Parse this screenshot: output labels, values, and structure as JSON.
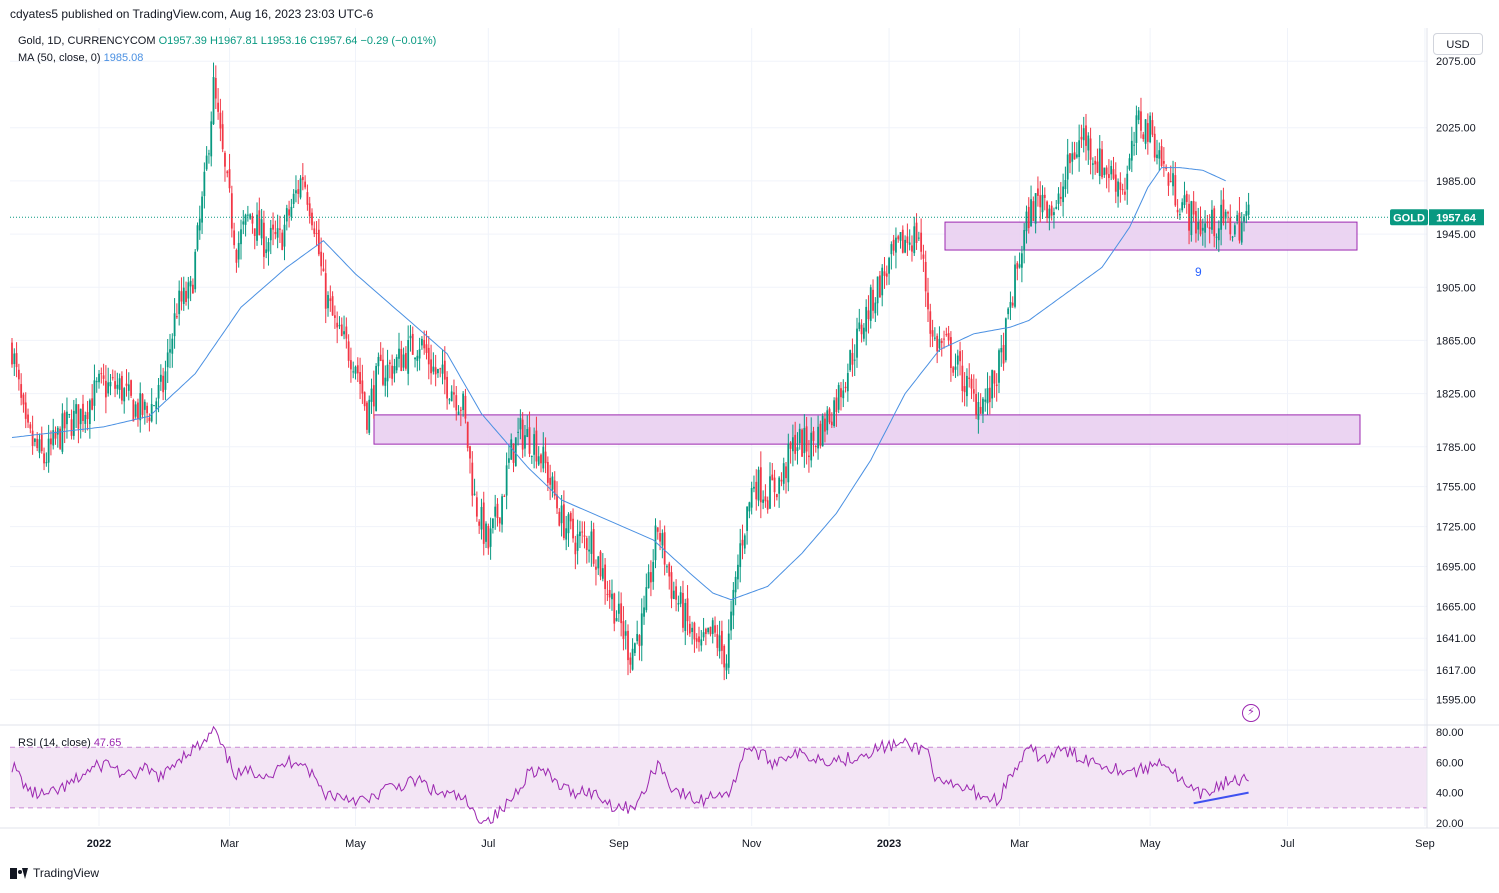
{
  "header": {
    "published": "cdyates5 published on TradingView.com, Aug 16, 2023 23:03 UTC-6",
    "currency_button": "USD",
    "brand": "TradingView"
  },
  "legend": {
    "symbol": "Gold, 1D, CURRENCYCOM",
    "open": "O1957.39",
    "high": "H1967.81",
    "low": "L1953.16",
    "close": "C1957.64",
    "change": "−0.29 (−0.01%)",
    "ma_label": "MA (50, close, 0)",
    "ma_value": "1985.08",
    "rsi_label": "RSI (14, close)",
    "rsi_value": "47.65"
  },
  "colors": {
    "up": "#089981",
    "down": "#f23645",
    "ma": "#4a90e2",
    "zone_fill": "#e7cdf0",
    "zone_stroke": "#9c27b0",
    "rsi_line": "#9c27b0",
    "rsi_band": "#f3e5f5",
    "divergence": "#3f51f0",
    "price_tag": "#089981"
  },
  "chart_data": [
    {
      "type": "candlestick",
      "y_ticks": [
        2075,
        2025,
        1985,
        1945,
        1905,
        1865,
        1825,
        1785,
        1755,
        1725,
        1695,
        1665,
        1641,
        1617,
        1595
      ],
      "ylim": [
        1578,
        2100
      ],
      "x_labels": [
        "2022",
        "Mar",
        "May",
        "Jul",
        "Sep",
        "Nov",
        "2023",
        "Mar",
        "May",
        "Jul",
        "Sep"
      ],
      "last_price_label": "GOLD",
      "last_price": 1957.64,
      "annotation": "9",
      "zones": [
        {
          "low": 1933,
          "high": 1954
        },
        {
          "low": 1787,
          "high": 1809
        }
      ],
      "price_anchors": [
        [
          0,
          1860
        ],
        [
          6,
          1795
        ],
        [
          14,
          1775
        ],
        [
          23,
          1800
        ],
        [
          30,
          1810
        ],
        [
          38,
          1830
        ],
        [
          47,
          1830
        ],
        [
          53,
          1815
        ],
        [
          59,
          1810
        ],
        [
          66,
          1830
        ],
        [
          72,
          1890
        ],
        [
          78,
          1900
        ],
        [
          84,
          1980
        ],
        [
          88,
          2055
        ],
        [
          93,
          1990
        ],
        [
          98,
          1935
        ],
        [
          104,
          1960
        ],
        [
          110,
          1940
        ],
        [
          117,
          1940
        ],
        [
          123,
          1970
        ],
        [
          127,
          1990
        ],
        [
          132,
          1955
        ],
        [
          136,
          1905
        ],
        [
          142,
          1870
        ],
        [
          150,
          1850
        ],
        [
          155,
          1810
        ],
        [
          160,
          1840
        ],
        [
          166,
          1845
        ],
        [
          172,
          1855
        ],
        [
          178,
          1865
        ],
        [
          185,
          1840
        ],
        [
          192,
          1830
        ],
        [
          197,
          1815
        ],
        [
          202,
          1745
        ],
        [
          208,
          1710
        ],
        [
          213,
          1740
        ],
        [
          218,
          1780
        ],
        [
          222,
          1795
        ],
        [
          228,
          1790
        ],
        [
          233,
          1770
        ],
        [
          240,
          1730
        ],
        [
          246,
          1715
        ],
        [
          253,
          1715
        ],
        [
          258,
          1690
        ],
        [
          264,
          1660
        ],
        [
          270,
          1630
        ],
        [
          276,
          1655
        ],
        [
          282,
          1725
        ],
        [
          288,
          1680
        ],
        [
          294,
          1655
        ],
        [
          300,
          1630
        ],
        [
          306,
          1645
        ],
        [
          312,
          1625
        ],
        [
          318,
          1710
        ],
        [
          324,
          1760
        ],
        [
          330,
          1750
        ],
        [
          336,
          1760
        ],
        [
          342,
          1790
        ],
        [
          348,
          1785
        ],
        [
          354,
          1800
        ],
        [
          360,
          1820
        ],
        [
          366,
          1850
        ],
        [
          372,
          1880
        ],
        [
          378,
          1905
        ],
        [
          384,
          1925
        ],
        [
          390,
          1940
        ],
        [
          396,
          1945
        ],
        [
          402,
          1865
        ],
        [
          408,
          1860
        ],
        [
          414,
          1840
        ],
        [
          420,
          1820
        ],
        [
          426,
          1820
        ],
        [
          432,
          1850
        ],
        [
          438,
          1910
        ],
        [
          444,
          1960
        ],
        [
          450,
          1975
        ],
        [
          456,
          1960
        ],
        [
          462,
          2000
        ],
        [
          468,
          2020
        ],
        [
          474,
          2000
        ],
        [
          480,
          1990
        ],
        [
          486,
          1980
        ],
        [
          492,
          2030
        ],
        [
          498,
          2020
        ],
        [
          504,
          1990
        ],
        [
          510,
          1970
        ],
        [
          516,
          1955
        ],
        [
          522,
          1950
        ],
        [
          528,
          1955
        ],
        [
          534,
          1950
        ],
        [
          540,
          1957.64
        ]
      ],
      "ma_anchors": [
        [
          0,
          1792
        ],
        [
          40,
          1800
        ],
        [
          60,
          1808
        ],
        [
          80,
          1840
        ],
        [
          100,
          1890
        ],
        [
          120,
          1920
        ],
        [
          136,
          1940
        ],
        [
          150,
          1915
        ],
        [
          170,
          1885
        ],
        [
          190,
          1855
        ],
        [
          205,
          1810
        ],
        [
          225,
          1770
        ],
        [
          240,
          1745
        ],
        [
          260,
          1730
        ],
        [
          280,
          1715
        ],
        [
          296,
          1690
        ],
        [
          306,
          1675
        ],
        [
          314,
          1670
        ],
        [
          330,
          1680
        ],
        [
          345,
          1705
        ],
        [
          360,
          1735
        ],
        [
          375,
          1775
        ],
        [
          390,
          1825
        ],
        [
          405,
          1858
        ],
        [
          420,
          1870
        ],
        [
          436,
          1875
        ],
        [
          444,
          1880
        ],
        [
          460,
          1900
        ],
        [
          476,
          1920
        ],
        [
          488,
          1950
        ],
        [
          496,
          1980
        ],
        [
          502,
          1995
        ],
        [
          510,
          1995
        ],
        [
          520,
          1993
        ],
        [
          530,
          1985.08
        ]
      ]
    },
    {
      "type": "line",
      "name": "RSI (14, close)",
      "y_ticks": [
        80,
        60,
        40,
        20
      ],
      "ylim": [
        18,
        82
      ],
      "band": [
        30,
        70
      ],
      "rsi_anchors": [
        [
          0,
          58
        ],
        [
          8,
          40
        ],
        [
          16,
          38
        ],
        [
          25,
          45
        ],
        [
          34,
          55
        ],
        [
          42,
          60
        ],
        [
          50,
          50
        ],
        [
          58,
          55
        ],
        [
          66,
          50
        ],
        [
          72,
          62
        ],
        [
          78,
          68
        ],
        [
          84,
          72
        ],
        [
          88,
          82
        ],
        [
          93,
          65
        ],
        [
          98,
          52
        ],
        [
          106,
          54
        ],
        [
          114,
          52
        ],
        [
          120,
          60
        ],
        [
          126,
          62
        ],
        [
          132,
          50
        ],
        [
          136,
          40
        ],
        [
          142,
          38
        ],
        [
          150,
          36
        ],
        [
          156,
          34
        ],
        [
          162,
          42
        ],
        [
          170,
          45
        ],
        [
          178,
          48
        ],
        [
          185,
          40
        ],
        [
          192,
          38
        ],
        [
          197,
          36
        ],
        [
          202,
          25
        ],
        [
          208,
          22
        ],
        [
          214,
          28
        ],
        [
          220,
          40
        ],
        [
          226,
          55
        ],
        [
          232,
          54
        ],
        [
          238,
          46
        ],
        [
          244,
          40
        ],
        [
          250,
          42
        ],
        [
          256,
          38
        ],
        [
          262,
          32
        ],
        [
          268,
          30
        ],
        [
          274,
          34
        ],
        [
          282,
          60
        ],
        [
          288,
          44
        ],
        [
          294,
          38
        ],
        [
          300,
          34
        ],
        [
          308,
          40
        ],
        [
          314,
          40
        ],
        [
          320,
          70
        ],
        [
          326,
          66
        ],
        [
          332,
          60
        ],
        [
          340,
          66
        ],
        [
          348,
          64
        ],
        [
          356,
          62
        ],
        [
          364,
          62
        ],
        [
          372,
          66
        ],
        [
          380,
          70
        ],
        [
          388,
          72
        ],
        [
          394,
          70
        ],
        [
          400,
          68
        ],
        [
          404,
          46
        ],
        [
          410,
          44
        ],
        [
          418,
          42
        ],
        [
          424,
          38
        ],
        [
          430,
          35
        ],
        [
          438,
          55
        ],
        [
          444,
          68
        ],
        [
          452,
          62
        ],
        [
          458,
          68
        ],
        [
          466,
          64
        ],
        [
          474,
          60
        ],
        [
          482,
          56
        ],
        [
          490,
          54
        ],
        [
          496,
          56
        ],
        [
          502,
          62
        ],
        [
          508,
          52
        ],
        [
          514,
          42
        ],
        [
          520,
          38
        ],
        [
          526,
          44
        ],
        [
          532,
          48
        ],
        [
          540,
          47.65
        ]
      ],
      "divergence_line": [
        [
          516,
          33
        ],
        [
          540,
          40
        ]
      ]
    }
  ]
}
